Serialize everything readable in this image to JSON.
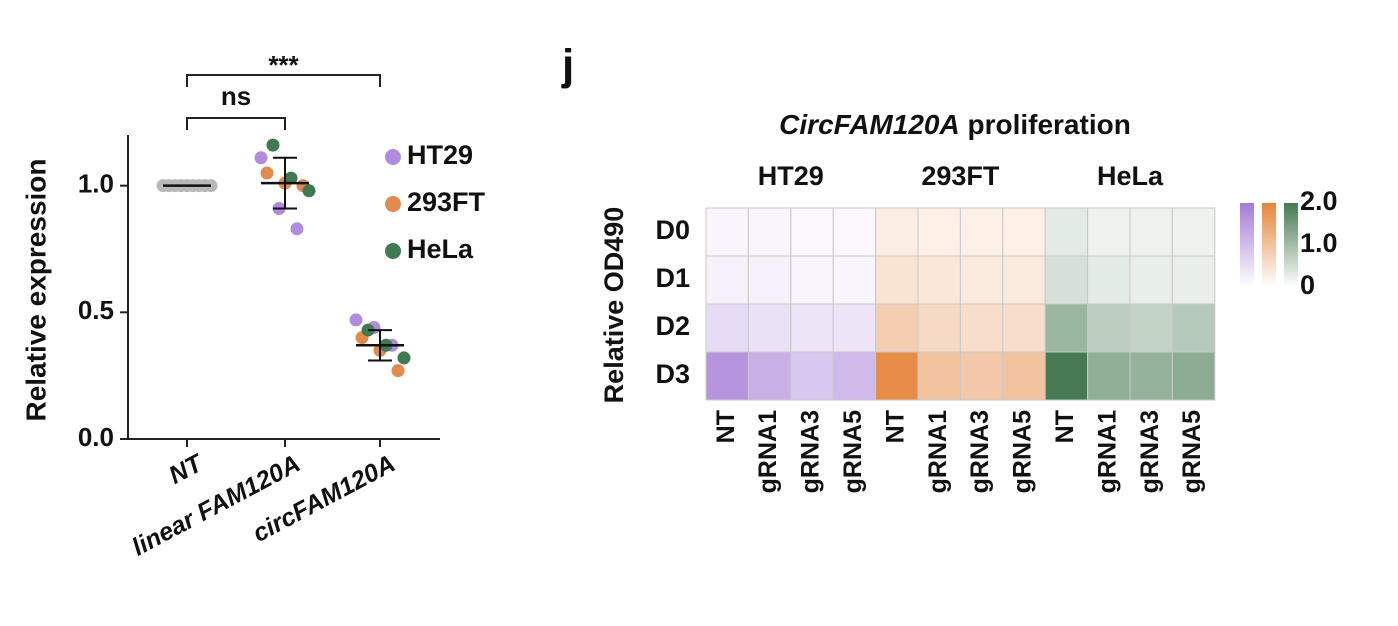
{
  "chart_data": [
    {
      "type": "dot",
      "y_label": "Relative expression",
      "categories": [
        "NT",
        "linear FAM120A",
        "circFAM120A"
      ],
      "series": [
        {
          "name": "HT29",
          "color": "#b18be0",
          "values": [
            [
              1.0,
              1.0,
              1.0
            ],
            [
              1.11,
              0.91,
              0.83
            ],
            [
              0.47,
              0.44,
              0.37
            ]
          ]
        },
        {
          "name": "293FT",
          "color": "#e38b4c",
          "values": [
            [
              1.0,
              1.0,
              1.0
            ],
            [
              1.05,
              1.01,
              1.0
            ],
            [
              0.4,
              0.35,
              0.27
            ]
          ]
        },
        {
          "name": "HeLa",
          "color": "#3f7a52",
          "values": [
            [
              1.0,
              1.0,
              1.0
            ],
            [
              1.16,
              1.03,
              0.98
            ],
            [
              0.43,
              0.37,
              0.32
            ]
          ]
        }
      ],
      "means": [
        1.0,
        1.01,
        0.37
      ],
      "errors": [
        0,
        0.1,
        0.06
      ],
      "ylim": [
        0,
        1.2
      ],
      "yticks": [
        {
          "value": 0,
          "label": "0.0"
        },
        {
          "value": 0.5,
          "label": "0.5"
        },
        {
          "value": 1,
          "label": "1.0"
        }
      ],
      "annotations": [
        {
          "text": "ns",
          "from": 0,
          "to": 1
        },
        {
          "text": "***",
          "from": 0,
          "to": 2
        }
      ]
    },
    {
      "type": "heatmap",
      "panel_label": "j",
      "title": {
        "italic": "CircFAM120A",
        "rest": "proliferation"
      },
      "y_label": "Relative OD490",
      "rows": [
        "D0",
        "D1",
        "D2",
        "D3"
      ],
      "columns": [
        "NT",
        "gRNA1",
        "gRNA3",
        "gRNA5"
      ],
      "series": [
        {
          "name": "HT29",
          "color": "#a47bd6",
          "values": [
            [
              0.15,
              0.15,
              0.12,
              0.12
            ],
            [
              0.2,
              0.2,
              0.15,
              0.15
            ],
            [
              0.55,
              0.45,
              0.4,
              0.4
            ],
            [
              1.6,
              1.2,
              0.85,
              1.05
            ]
          ]
        },
        {
          "name": "293FT",
          "color": "#e5853e",
          "values": [
            [
              0.3,
              0.25,
              0.25,
              0.25
            ],
            [
              0.45,
              0.4,
              0.35,
              0.35
            ],
            [
              0.8,
              0.6,
              0.55,
              0.55
            ],
            [
              1.9,
              1.0,
              0.9,
              1.0
            ]
          ]
        },
        {
          "name": "HeLa",
          "color": "#467a52",
          "values": [
            [
              0.3,
              0.2,
              0.2,
              0.2
            ],
            [
              0.45,
              0.3,
              0.25,
              0.25
            ],
            [
              1.1,
              0.75,
              0.65,
              0.8
            ],
            [
              2.0,
              1.2,
              1.15,
              1.25
            ]
          ]
        }
      ],
      "clim": [
        0,
        2
      ],
      "cticks": [
        0,
        {
          "value": 1,
          "label": "1.0"
        },
        {
          "value": 2,
          "label": "2.0"
        }
      ]
    }
  ]
}
